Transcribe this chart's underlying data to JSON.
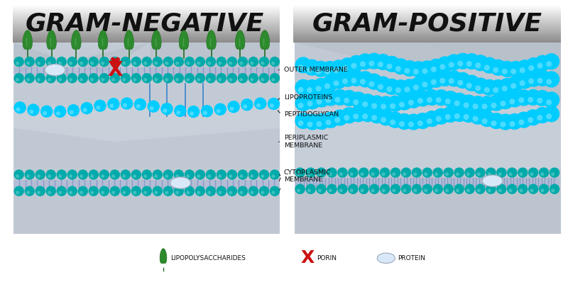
{
  "title_left": "GRAM-NEGATIVE",
  "title_right": "GRAM-POSITIVE",
  "title_fontsize": 26,
  "title_color": "#111111",
  "bg_color": "#ffffff",
  "label_outer_membrane": "OUTER MEMBRANE",
  "label_lipoproteins": "LIPOPROTEINS",
  "label_peptidoglycan": "PEPTIDOGLYCAN",
  "label_periplasmic": "PERIPLASMIC\nMEMBRANE",
  "label_cytoplasmic": "CYTOPLASMIC\nMEMBRANE",
  "legend_lps": "LIPOPOLYSACCHARIDES",
  "legend_porin": "PORIN",
  "legend_protein": "PROTEIN",
  "teal_color": "#00AAAA",
  "teal_dark": "#008888",
  "blue_color": "#00CCFF",
  "blue_dark": "#00AADD",
  "green_dark": "#1E6B1E",
  "green_mid": "#2D8B2D",
  "green_light": "#5AAA5A",
  "red_color": "#CC1111",
  "membrane_purple": "#A8B4D8",
  "membrane_purple2": "#8898C8",
  "gray_bg": "#B8C2CC",
  "gray_bg2": "#C5CDD8",
  "gray_bg3": "#D0D8E4",
  "white_protein": "#D8E8F8",
  "white_protein_edge": "#9AAABB"
}
